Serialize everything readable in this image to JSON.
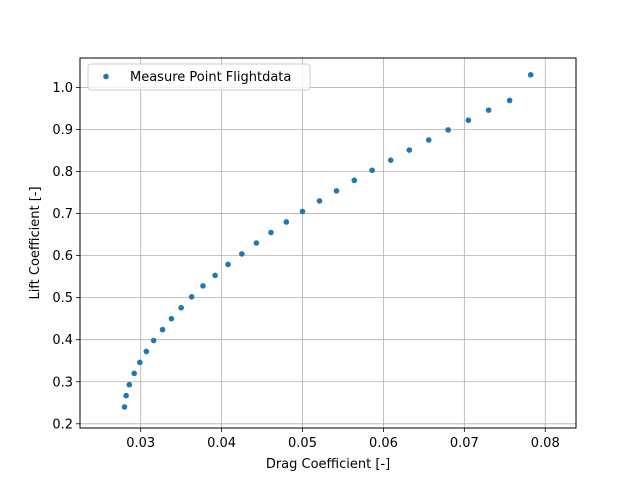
{
  "chart_data": {
    "type": "scatter",
    "xlabel": "Drag Coefficient [-]",
    "ylabel": "Lift Coefficient [-]",
    "xlim": [
      0.0225,
      0.0838
    ],
    "ylim": [
      0.19,
      1.07
    ],
    "x_ticks": [
      "0.03",
      "0.04",
      "0.05",
      "0.06",
      "0.07",
      "0.08"
    ],
    "y_ticks": [
      "0.2",
      "0.3",
      "0.4",
      "0.5",
      "0.6",
      "0.7",
      "0.8",
      "0.9",
      "1.0"
    ],
    "grid": true,
    "legend_position": "top-left",
    "series": [
      {
        "name": "Measure Point Flightdata",
        "color": "#1f77b4",
        "x": [
          0.028,
          0.0282,
          0.0286,
          0.0292,
          0.0299,
          0.0307,
          0.0316,
          0.0327,
          0.0338,
          0.035,
          0.0363,
          0.0377,
          0.0392,
          0.0408,
          0.0425,
          0.0443,
          0.0461,
          0.048,
          0.05,
          0.0521,
          0.0542,
          0.0564,
          0.0586,
          0.0609,
          0.0632,
          0.0656,
          0.068,
          0.0705,
          0.073,
          0.0756,
          0.0782
        ],
        "y": [
          0.24,
          0.267,
          0.293,
          0.32,
          0.346,
          0.372,
          0.398,
          0.424,
          0.45,
          0.476,
          0.502,
          0.528,
          0.553,
          0.579,
          0.604,
          0.63,
          0.655,
          0.68,
          0.705,
          0.73,
          0.754,
          0.779,
          0.803,
          0.827,
          0.851,
          0.875,
          0.899,
          0.922,
          0.946,
          0.969,
          1.03
        ]
      }
    ]
  }
}
